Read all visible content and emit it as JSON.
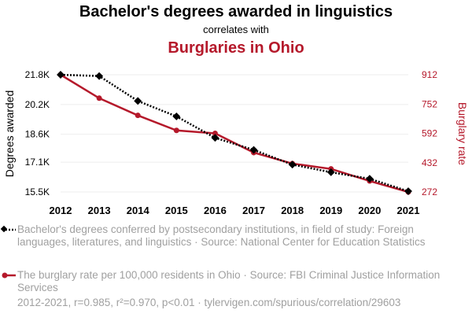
{
  "colors": {
    "series1": "#000000",
    "series2": "#b5192b",
    "muted": "#a0a0a0",
    "grid": "#eeeeee"
  },
  "chart_data": {
    "type": "line",
    "title": "Bachelor's degrees awarded in linguistics",
    "subtitle": "correlates with",
    "title2": "Burglaries in Ohio",
    "x": [
      2012,
      2013,
      2014,
      2015,
      2016,
      2017,
      2018,
      2019,
      2020,
      2021
    ],
    "x_tick_labels": [
      "2012",
      "2013",
      "2014",
      "2015",
      "2016",
      "2017",
      "2018",
      "2019",
      "2020",
      "2021"
    ],
    "series": [
      {
        "name": "Bachelor's degrees conferred by postsecondary institutions, in field of study: Foreign languages, literatures, and linguistics",
        "axis": "left",
        "style": "dotted",
        "marker": "diamond",
        "values": [
          21800,
          21730,
          20390,
          19560,
          18410,
          17760,
          16970,
          16560,
          16210,
          15540
        ]
      },
      {
        "name": "The burglary rate per 100,000 residents in Ohio",
        "axis": "right",
        "style": "solid",
        "marker": "circle",
        "values": [
          912,
          784,
          690,
          608,
          592,
          487,
          427,
          398,
          332,
          272
        ]
      }
    ],
    "y_left": {
      "label": "Degrees awarded",
      "ticks": [
        15500,
        17100,
        18600,
        20200,
        21800
      ],
      "tick_labels": [
        "15.5K",
        "17.1K",
        "18.6K",
        "20.2K",
        "21.8K"
      ],
      "range": [
        15500,
        21800
      ]
    },
    "y_right": {
      "label": "Burglary rate",
      "ticks": [
        272,
        432,
        592,
        752,
        912
      ],
      "tick_labels": [
        "272",
        "432",
        "592",
        "752",
        "912"
      ],
      "range": [
        272,
        912
      ]
    },
    "legend": [
      "Bachelor's degrees conferred by postsecondary institutions, in field of study: Foreign languages, literatures, and linguistics · Source: National Center for Education Statistics",
      "The burglary rate per 100,000 residents in Ohio · Source: FBI Criminal Justice Information Services"
    ],
    "footer": "2012-2021, r=0.985, r²=0.970, p<0.01 · tylervigen.com/spurious/correlation/29603",
    "grid": true
  }
}
